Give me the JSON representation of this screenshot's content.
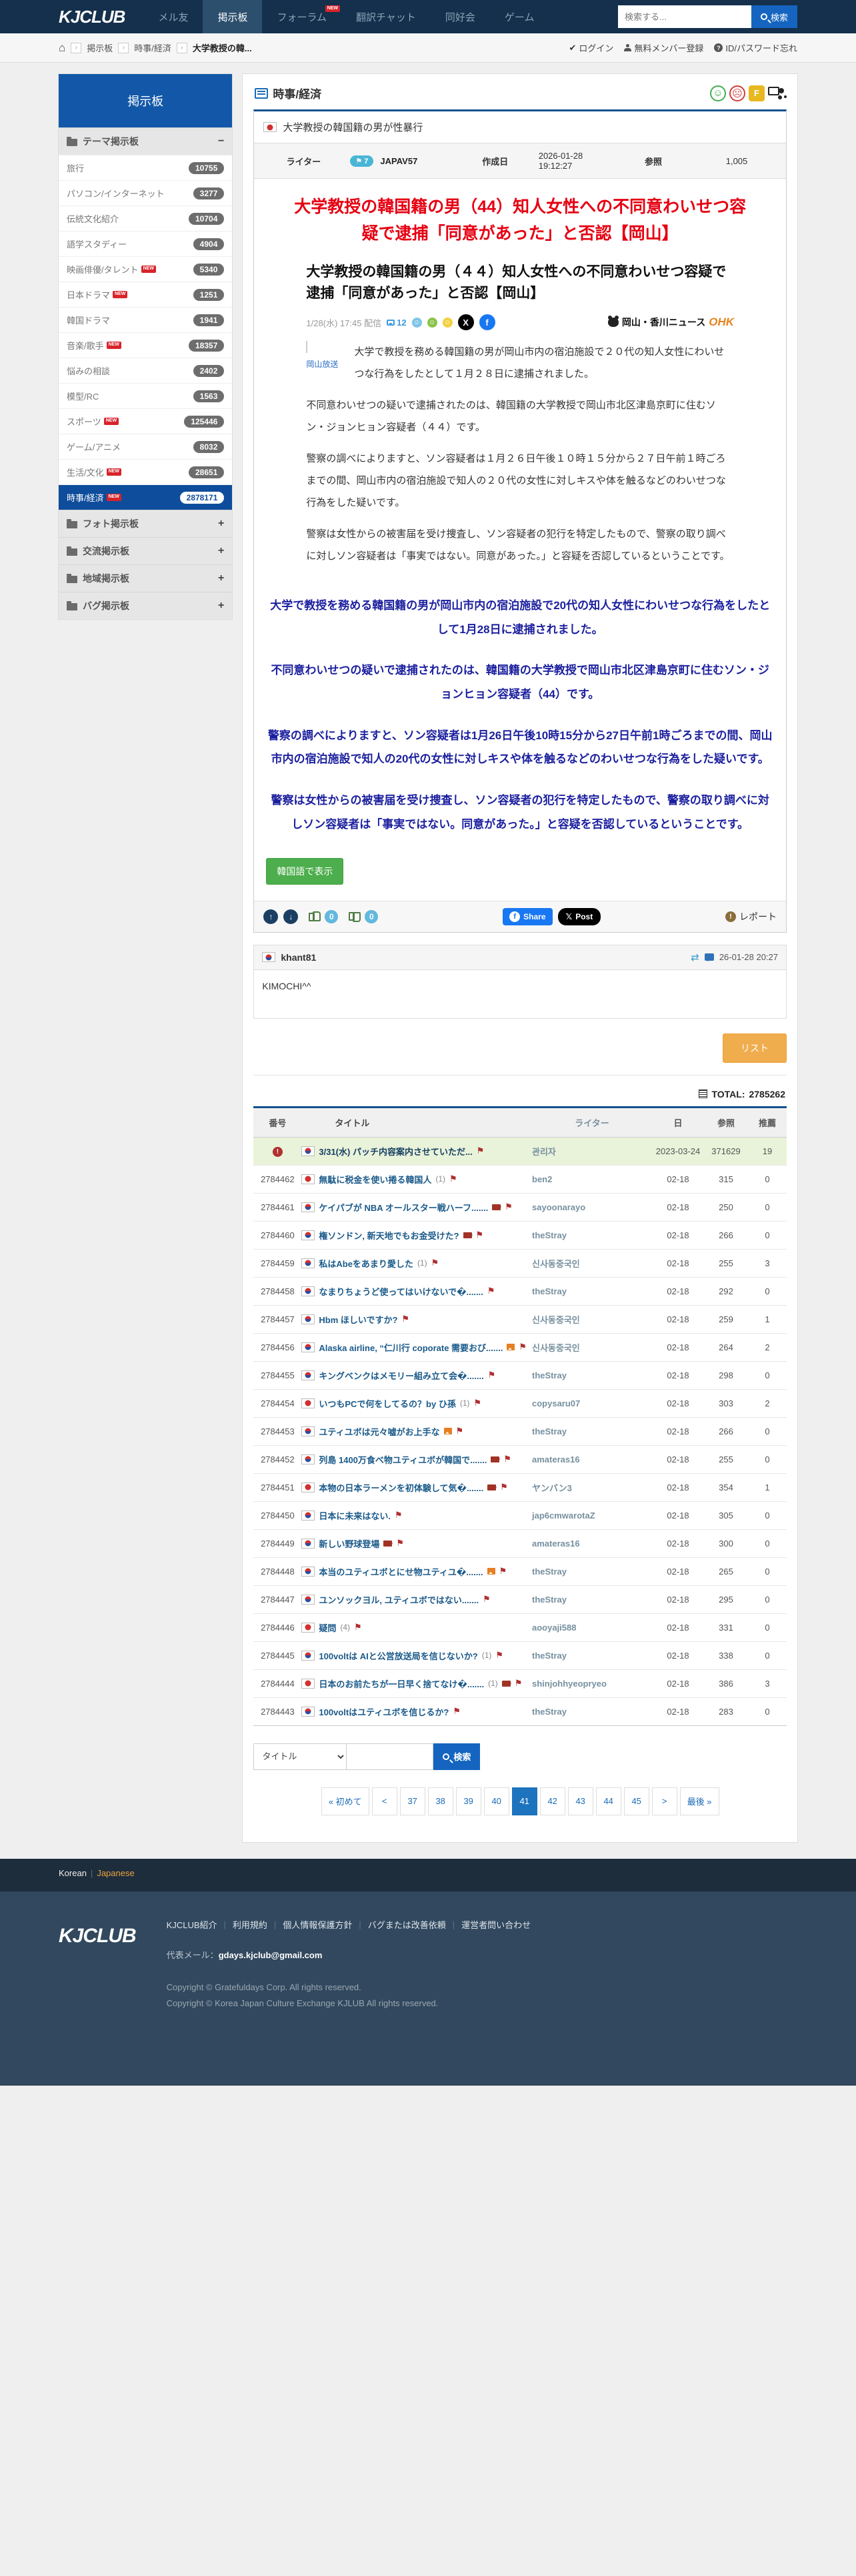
{
  "navbar": {
    "logo": "KJCLUB",
    "items": [
      {
        "label": "メル友",
        "active": false,
        "new": false
      },
      {
        "label": "掲示板",
        "active": true,
        "new": false
      },
      {
        "label": "フォーラム",
        "active": false,
        "new": true
      },
      {
        "label": "翻訳チャット",
        "active": false,
        "new": false
      },
      {
        "label": "同好会",
        "active": false,
        "new": false
      },
      {
        "label": "ゲーム",
        "active": false,
        "new": false
      }
    ],
    "search_placeholder": "検索する...",
    "search_button": "検索"
  },
  "breadcrumb": {
    "items": [
      "掲示板",
      "時事/経済",
      "大学教授の韓..."
    ],
    "login": "ログイン",
    "register": "無料メンバー登録",
    "forgot": "ID/パスワード忘れ"
  },
  "sidebar": {
    "title": "掲示板",
    "theme_group": "テーマ掲示板",
    "theme_toggle": "−",
    "items": [
      {
        "label": "旅行",
        "count": "10755",
        "new": false,
        "active": false
      },
      {
        "label": "パソコン/インターネット",
        "count": "3277",
        "new": false,
        "active": false
      },
      {
        "label": "伝統文化紹介",
        "count": "10704",
        "new": false,
        "active": false
      },
      {
        "label": "語学スタディー",
        "count": "4904",
        "new": false,
        "active": false
      },
      {
        "label": "映画俳優/タレント",
        "count": "5340",
        "new": true,
        "active": false
      },
      {
        "label": "日本ドラマ",
        "count": "1251",
        "new": true,
        "active": false
      },
      {
        "label": "韓国ドラマ",
        "count": "1941",
        "new": false,
        "active": false
      },
      {
        "label": "音楽/歌手",
        "count": "18357",
        "new": true,
        "active": false
      },
      {
        "label": "悩みの相談",
        "count": "2402",
        "new": false,
        "active": false
      },
      {
        "label": "模型/RC",
        "count": "1563",
        "new": false,
        "active": false
      },
      {
        "label": "スポーツ",
        "count": "125446",
        "new": true,
        "active": false
      },
      {
        "label": "ゲーム/アニメ",
        "count": "8032",
        "new": false,
        "active": false
      },
      {
        "label": "生活/文化",
        "count": "28651",
        "new": true,
        "active": false
      },
      {
        "label": "時事/経済",
        "count": "2878171",
        "new": true,
        "active": true
      }
    ],
    "collapsed_groups": [
      "フォト掲示板",
      "交流掲示板",
      "地域掲示板",
      "バグ掲示板"
    ]
  },
  "board": {
    "title": "時事/経済"
  },
  "post": {
    "title": "大学教授の韓国籍の男が性暴行",
    "meta": {
      "writer_label": "ライター",
      "writer_level": "7",
      "writer": "JAPAV57",
      "date_label": "作成日",
      "date": "2026-01-28 19:12:27",
      "views_label": "参照",
      "views": "1,005"
    },
    "article": {
      "headline_red": "大学教授の韓国籍の男（44）知人女性への不同意わいせつ容疑で逮捕「同意があった」と否認【岡山】",
      "headline_black": "大学教授の韓国籍の男（４４）知人女性への不同意わいせつ容疑で逮捕「同意があった」と否認【岡山】",
      "news_meta": "1/28(水) 17:45 配信",
      "comment_count": "12",
      "source_name": "岡山・香川ニュース",
      "source_brand": "OHK",
      "image_caption": "岡山放送",
      "paragraphs": [
        "大学で教授を務める韓国籍の男が岡山市内の宿泊施設で２０代の知人女性にわいせつな行為をしたとして１月２８日に逮捕されました。",
        "不同意わいせつの疑いで逮捕されたのは、韓国籍の大学教授で岡山市北区津島京町に住むソン・ジョンヒョン容疑者（４４）です。",
        "警察の調べによりますと、ソン容疑者は１月２６日午後１０時１５分から２７日午前１時ごろまでの間、岡山市内の宿泊施設で知人の２０代の女性に対しキスや体を触るなどのわいせつな行為をした疑いです。",
        "警察は女性からの被害届を受け捜査し、ソン容疑者の犯行を特定したもので、警察の取り調べに対しソン容疑者は「事実ではない。同意があった。」と容疑を否認しているということです。"
      ],
      "blue_paragraphs": [
        "大学で教授を務める韓国籍の男が岡山市内の宿泊施設で20代の知人女性にわいせつな行為をしたとして1月28日に逮捕されました。",
        "不同意わいせつの疑いで逮捕されたのは、韓国籍の大学教授で岡山市北区津島京町に住むソン・ジョンヒョン容疑者（44）です。",
        "警察の調べによりますと、ソン容疑者は1月26日午後10時15分から27日午前1時ごろまでの間、岡山市内の宿泊施設で知人の20代の女性に対しキスや体を触るなどのわいせつな行為をした疑いです。",
        "警察は女性からの被害届を受け捜査し、ソン容疑者の犯行を特定したもので、警察の取り調べに対しソン容疑者は「事実ではない。同意があった。」と容疑を否認しているということです。"
      ],
      "translate_button": "韓国語で表示"
    },
    "actions": {
      "like_count": "0",
      "dislike_count": "0",
      "share_label": "Share",
      "post_label": "Post",
      "report_label": "レポート"
    }
  },
  "comment": {
    "author": "khant81",
    "date": "26-01-28 20:27",
    "body": "KIMOCHI^^"
  },
  "list_button": "リスト",
  "total": {
    "label": "TOTAL:",
    "value": "2785262"
  },
  "table": {
    "headers": [
      "番号",
      "タイトル",
      "ライター",
      "日",
      "参照",
      "推薦"
    ],
    "rows": [
      {
        "notice": true,
        "no": "",
        "flag": "kr",
        "title": "3/31(水) パッチ内容案内させていただ...",
        "count": "",
        "media": "",
        "writer": "관리자",
        "date": "2023-03-24",
        "views": "371629",
        "votes": "19"
      },
      {
        "notice": false,
        "no": "2784462",
        "flag": "jp",
        "title": "無駄に税金を使い捲る韓国人",
        "count": "(1)",
        "media": "",
        "writer": "ben2",
        "date": "02-18",
        "views": "315",
        "votes": "0"
      },
      {
        "notice": false,
        "no": "2784461",
        "flag": "kr",
        "title": "ケイパブが NBA オールスター戦ハーフ.......",
        "count": "",
        "media": "video",
        "writer": "sayoonarayo",
        "date": "02-18",
        "views": "250",
        "votes": "0"
      },
      {
        "notice": false,
        "no": "2784460",
        "flag": "kr",
        "title": "権ソンドン, 新天地でもお金受けた?",
        "count": "",
        "media": "video",
        "writer": "theStray",
        "date": "02-18",
        "views": "266",
        "votes": "0"
      },
      {
        "notice": false,
        "no": "2784459",
        "flag": "kr",
        "title": "私はAbeをあまり愛した",
        "count": "(1)",
        "media": "",
        "writer": "신사동중국인",
        "date": "02-18",
        "views": "255",
        "votes": "3"
      },
      {
        "notice": false,
        "no": "2784458",
        "flag": "kr",
        "title": "なまりちょうど使ってはいけないで�.......",
        "count": "",
        "media": "",
        "writer": "theStray",
        "date": "02-18",
        "views": "292",
        "votes": "0"
      },
      {
        "notice": false,
        "no": "2784457",
        "flag": "kr",
        "title": "Hbm ほしいですか?",
        "count": "",
        "media": "",
        "writer": "신사동중국인",
        "date": "02-18",
        "views": "259",
        "votes": "1"
      },
      {
        "notice": false,
        "no": "2784456",
        "flag": "kr",
        "title": "Alaska airline, “仁川行 coporate 需要おび.......",
        "count": "",
        "media": "image",
        "writer": "신사동중국인",
        "date": "02-18",
        "views": "264",
        "votes": "2"
      },
      {
        "notice": false,
        "no": "2784455",
        "flag": "kr",
        "title": "キングベンクはメモリー組み立て会�.......",
        "count": "",
        "media": "",
        "writer": "theStray",
        "date": "02-18",
        "views": "298",
        "votes": "0"
      },
      {
        "notice": false,
        "no": "2784454",
        "flag": "jp",
        "title": "いつもPCで何をしてるの？by ひ孫",
        "count": "(1)",
        "media": "",
        "writer": "copysaru07",
        "date": "02-18",
        "views": "303",
        "votes": "2"
      },
      {
        "notice": false,
        "no": "2784453",
        "flag": "kr",
        "title": "ユティユボは元々嘘がお上手な",
        "count": "",
        "media": "image",
        "writer": "theStray",
        "date": "02-18",
        "views": "266",
        "votes": "0"
      },
      {
        "notice": false,
        "no": "2784452",
        "flag": "kr",
        "title": "列島 1400万食べ物ユティユボが韓国で.......",
        "count": "",
        "media": "video",
        "writer": "amateras16",
        "date": "02-18",
        "views": "255",
        "votes": "0"
      },
      {
        "notice": false,
        "no": "2784451",
        "flag": "jp",
        "title": "本物の日本ラーメンを初体験して気�.......",
        "count": "",
        "media": "video",
        "writer": "ヤンバン3",
        "date": "02-18",
        "views": "354",
        "votes": "1"
      },
      {
        "notice": false,
        "no": "2784450",
        "flag": "kr",
        "title": "日本に未来はない.",
        "count": "",
        "media": "",
        "writer": "jap6cmwarotaZ",
        "date": "02-18",
        "views": "305",
        "votes": "0"
      },
      {
        "notice": false,
        "no": "2784449",
        "flag": "kr",
        "title": "新しい野球登場",
        "count": "",
        "media": "video",
        "writer": "amateras16",
        "date": "02-18",
        "views": "300",
        "votes": "0"
      },
      {
        "notice": false,
        "no": "2784448",
        "flag": "kr",
        "title": "本当のユティユボとにせ物ユティユ�.......",
        "count": "",
        "media": "image",
        "writer": "theStray",
        "date": "02-18",
        "views": "265",
        "votes": "0"
      },
      {
        "notice": false,
        "no": "2784447",
        "flag": "kr",
        "title": "ユンソックヨル, ユティユボではない.......",
        "count": "",
        "media": "",
        "writer": "theStray",
        "date": "02-18",
        "views": "295",
        "votes": "0"
      },
      {
        "notice": false,
        "no": "2784446",
        "flag": "jp",
        "title": "疑問",
        "count": "(4)",
        "media": "",
        "writer": "aooyaji588",
        "date": "02-18",
        "views": "331",
        "votes": "0"
      },
      {
        "notice": false,
        "no": "2784445",
        "flag": "kr",
        "title": "100voltは AIと公営放送局を信じないか?",
        "count": "(1)",
        "media": "",
        "writer": "theStray",
        "date": "02-18",
        "views": "338",
        "votes": "0"
      },
      {
        "notice": false,
        "no": "2784444",
        "flag": "jp",
        "title": "日本のお前たちが一日早く捨てなけ�.......",
        "count": "(1)",
        "media": "video",
        "writer": "shinjohhyeopryeo",
        "date": "02-18",
        "views": "386",
        "votes": "3"
      },
      {
        "notice": false,
        "no": "2784443",
        "flag": "kr",
        "title": "100voltはユティユボを信じるか?",
        "count": "",
        "media": "",
        "writer": "theStray",
        "date": "02-18",
        "views": "283",
        "votes": "0"
      }
    ]
  },
  "search": {
    "select_value": "タイトル",
    "button": "検索"
  },
  "pagination": {
    "first": "« 初めて",
    "prev": "<",
    "pages": [
      "37",
      "38",
      "39",
      "40",
      "41",
      "42",
      "43",
      "44",
      "45"
    ],
    "active": "41",
    "next": ">",
    "last": "最後 »"
  },
  "footer": {
    "lang_korean": "Korean",
    "lang_japanese": "Japanese",
    "logo": "KJCLUB",
    "links": [
      "KJCLUB紹介",
      "利用規約",
      "個人情報保護方針",
      "バグまたは改善依頼",
      "運営者問い合わせ"
    ],
    "email_label": "代表メール：",
    "email": "gdays.kjclub@gmail.com",
    "copyright1": "Copyright © Gratefuldays Corp. All rights reserved.",
    "copyright2": "Copyright © Korea Japan Culture Exchange KJLUB All rights reserved."
  }
}
